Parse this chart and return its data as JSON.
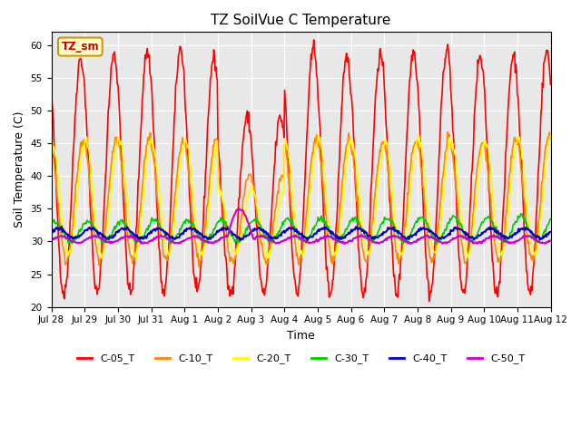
{
  "title": "TZ SoilVue C Temperature",
  "xlabel": "Time",
  "ylabel": "Soil Temperature (C)",
  "ylim": [
    20,
    62
  ],
  "yticks": [
    20,
    25,
    30,
    35,
    40,
    45,
    50,
    55,
    60
  ],
  "bg_color": "#e8e8e8",
  "annotation_label": "TZ_sm",
  "annotation_color": "#cc0000",
  "annotation_bg": "#ffffcc",
  "annotation_border": "#cc9900",
  "series_names": [
    "C-05_T",
    "C-10_T",
    "C-20_T",
    "C-30_T",
    "C-40_T",
    "C-50_T"
  ],
  "series_colors": [
    "#ff0000",
    "#ff8800",
    "#ffff00",
    "#00cc00",
    "#0000cc",
    "#cc00cc"
  ],
  "series_linewidths": [
    1.2,
    1.2,
    1.2,
    1.2,
    1.5,
    1.5
  ],
  "x_tick_labels": [
    "Jul 28",
    "Jul 29",
    "Jul 30",
    "Jul 31",
    "Aug 1",
    "Aug 2",
    "Aug 3",
    "Aug 4",
    "Aug 5",
    "Aug 6",
    "Aug 7",
    "Aug 8",
    "Aug 9",
    "Aug 10",
    "Aug 11",
    "Aug 12"
  ],
  "n_days": 15,
  "points_per_day": 48
}
